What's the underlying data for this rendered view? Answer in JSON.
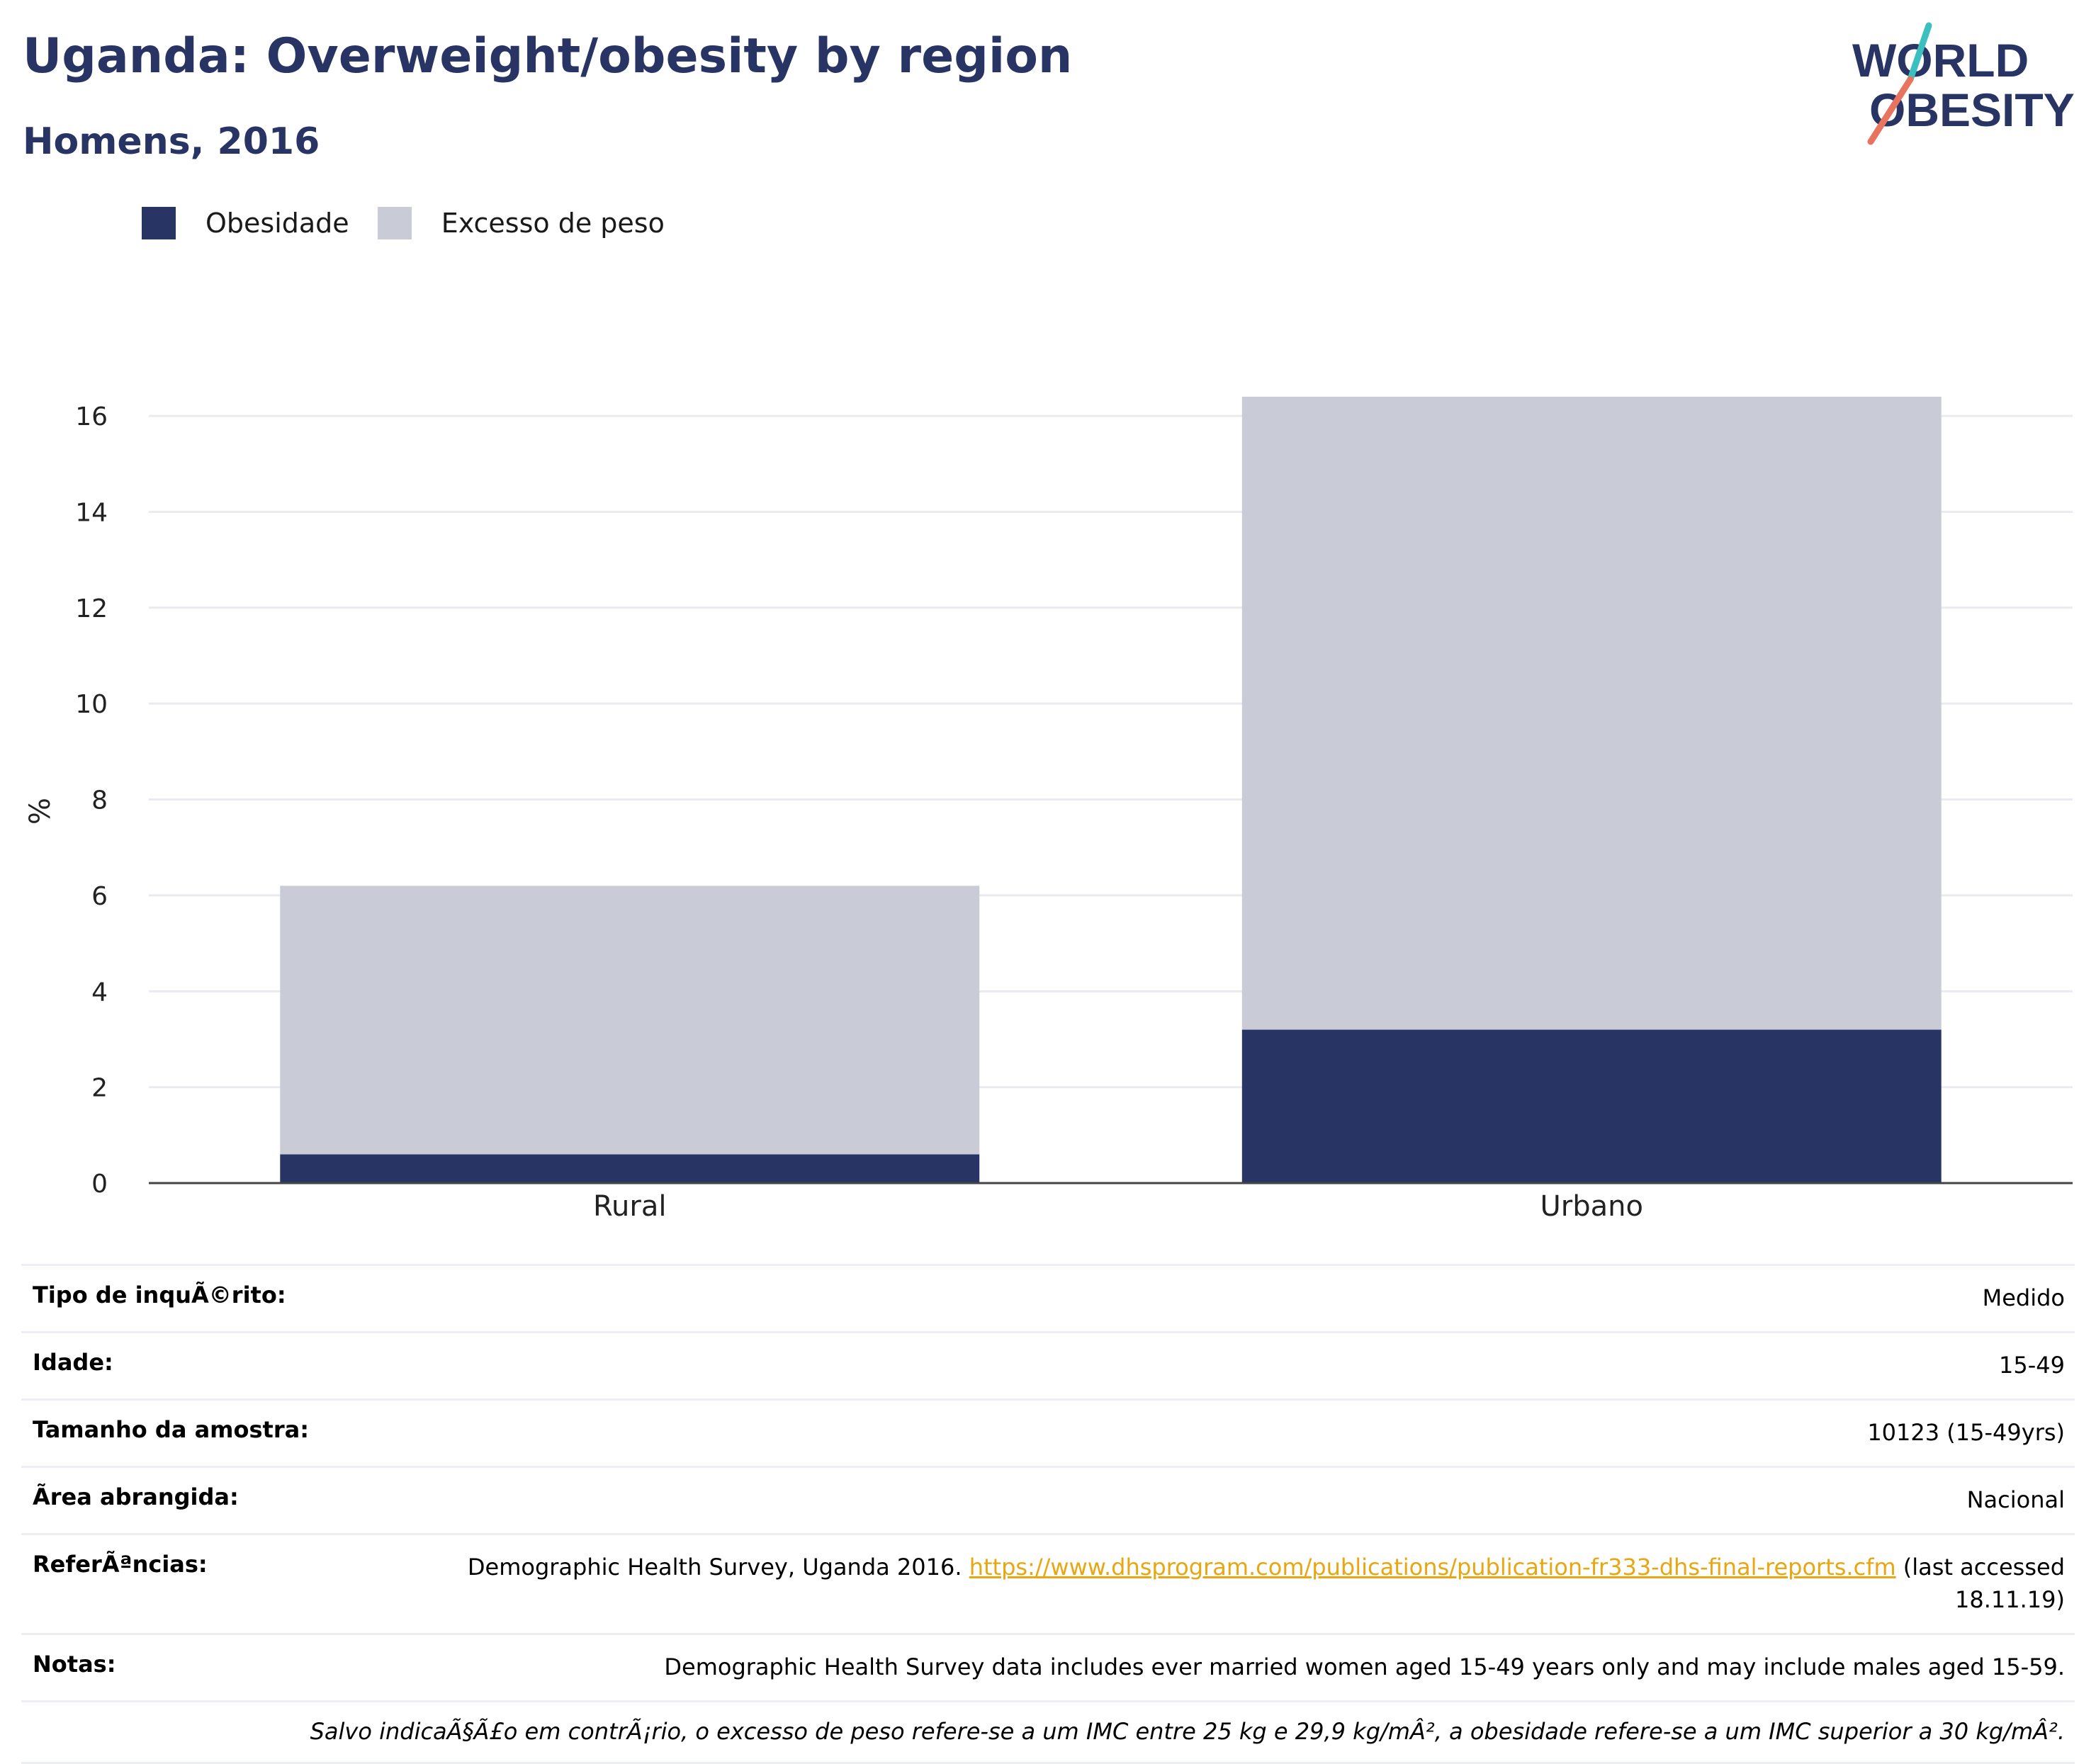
{
  "header": {
    "title": "Uganda: Overweight/obesity by region",
    "subtitle": "Homens, 2016"
  },
  "logo": {
    "line1": "WORLD",
    "line2": "OBESITY",
    "colors": {
      "text": "#283464",
      "slash_top": "#3bbfbf",
      "slash_bottom": "#e8735e"
    }
  },
  "colors": {
    "obesity": "#283464",
    "overweight": "#c9ccd7",
    "grid": "#e9ebf0",
    "axis": "#444444"
  },
  "chart_data": {
    "type": "bar",
    "stacked": true,
    "categories": [
      "Rural",
      "Urbano"
    ],
    "series": [
      {
        "name": "Obesidade",
        "values": [
          0.6,
          3.2
        ],
        "color": "#283464"
      },
      {
        "name": "Excesso de peso",
        "values": [
          5.6,
          13.2
        ],
        "color": "#c9ccd7"
      }
    ],
    "ylabel": "%",
    "ylim": [
      0,
      16.4
    ],
    "yticks": [
      0,
      2,
      4,
      6,
      8,
      10,
      12,
      14,
      16
    ],
    "grid": true,
    "legend_position": "top-left"
  },
  "meta": {
    "survey_type_label": "Tipo de inquÃ©rito:",
    "survey_type_value": "Medido",
    "age_label": "Idade:",
    "age_value": "15-49",
    "sample_label": "Tamanho da amostra:",
    "sample_value": "10123 (15-49yrs)",
    "area_label": "Ãrea abrangida:",
    "area_value": "Nacional",
    "refs_label": "ReferÃªncias:",
    "refs_text": "Demographic Health Survey, Uganda 2016.",
    "refs_link": "https://www.dhsprogram.com/publications/publication-fr333-dhs-final-reports.cfm",
    "refs_suffix": "(last accessed 18.11.19)",
    "notes_label": "Notas:",
    "notes_value": "Demographic Health Survey data includes ever married women aged 15-49 years only and may include males aged 15-59.",
    "footnote": "Salvo indicaÃ§Ã£o em contrÃ¡rio, o excesso de peso refere-se a um IMC entre 25 kg e 29,9 kg/mÂ², a obesidade refere-se a um IMC superior a 30 kg/mÂ²."
  }
}
